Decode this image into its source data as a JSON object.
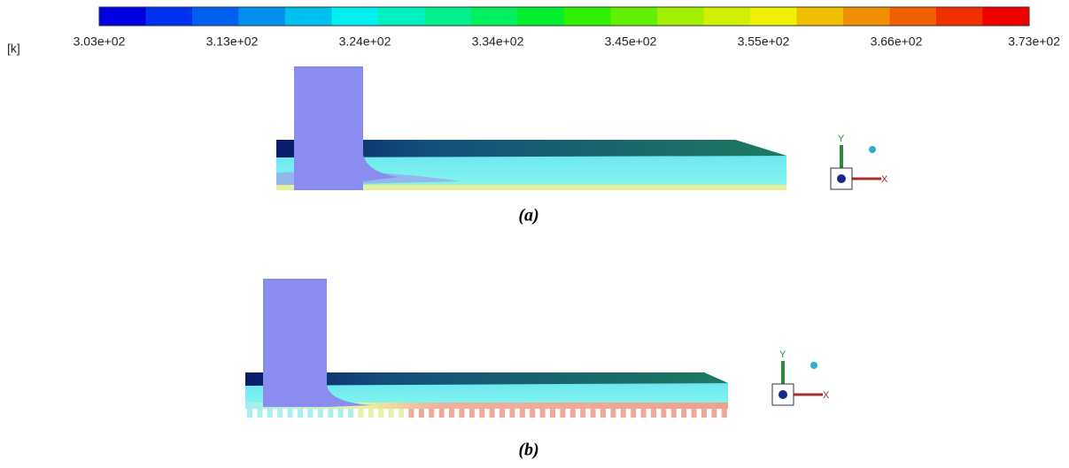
{
  "legend": {
    "unit": "[k]",
    "labels": [
      "3.03e+02",
      "3.13e+02",
      "3.24e+02",
      "3.34e+02",
      "3.45e+02",
      "3.55e+02",
      "3.66e+02",
      "3.73e+02"
    ],
    "colors": [
      "#0000e0",
      "#0030f0",
      "#0060f0",
      "#0090f0",
      "#00c0f0",
      "#00f0f0",
      "#00f0c0",
      "#00f090",
      "#00f060",
      "#00f030",
      "#30f000",
      "#60f000",
      "#a0f000",
      "#d0f000",
      "#f0f000",
      "#f0c000",
      "#f09000",
      "#f06000",
      "#f03000",
      "#f00000"
    ]
  },
  "figures": [
    {
      "caption": "(a)",
      "axes": {
        "y": "Y",
        "x": "X"
      }
    },
    {
      "caption": "(b)",
      "axes": {
        "y": "Y",
        "x": "X"
      }
    }
  ]
}
